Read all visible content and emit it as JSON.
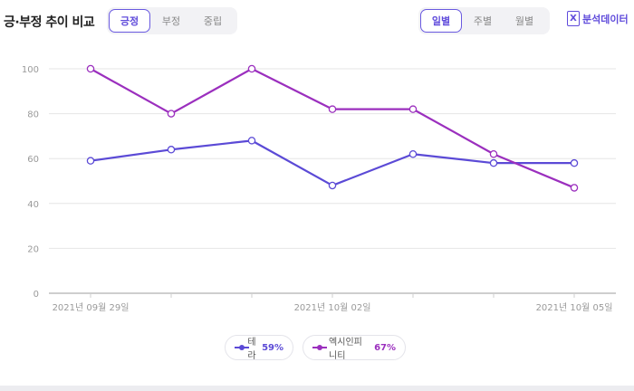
{
  "header": {
    "title": "긍·부정 추이 비교",
    "sentiment_tabs": [
      {
        "label": "긍정",
        "active": true
      },
      {
        "label": "부정",
        "active": false
      },
      {
        "label": "중립",
        "active": false
      }
    ],
    "period_tabs": [
      {
        "label": "일별",
        "active": true
      },
      {
        "label": "주별",
        "active": false
      },
      {
        "label": "월별",
        "active": false
      }
    ],
    "export_label": "분석데이터",
    "export_icon": "excel-x-icon"
  },
  "colors": {
    "accent": "#5f4bdb",
    "series_1": "#5b4ad6",
    "series_2": "#9b2fbe",
    "grid": "#e6e6e6",
    "axis_text": "#9a9a9a"
  },
  "chart_data": {
    "type": "line",
    "categories": [
      "2021년 09월 29일",
      "",
      "",
      "2021년 10월 02일",
      "",
      "",
      "2021년 10월 05일"
    ],
    "series": [
      {
        "name": "테라",
        "share": "59%",
        "values": [
          59,
          64,
          68,
          48,
          62,
          58,
          58
        ]
      },
      {
        "name": "엑시인피니티",
        "share": "67%",
        "values": [
          100,
          80,
          100,
          82,
          82,
          62,
          47
        ]
      }
    ],
    "yticks": [
      0,
      20,
      40,
      60,
      80,
      100
    ],
    "ylim": [
      0,
      100
    ],
    "grid": true,
    "legend_position": "bottom"
  }
}
